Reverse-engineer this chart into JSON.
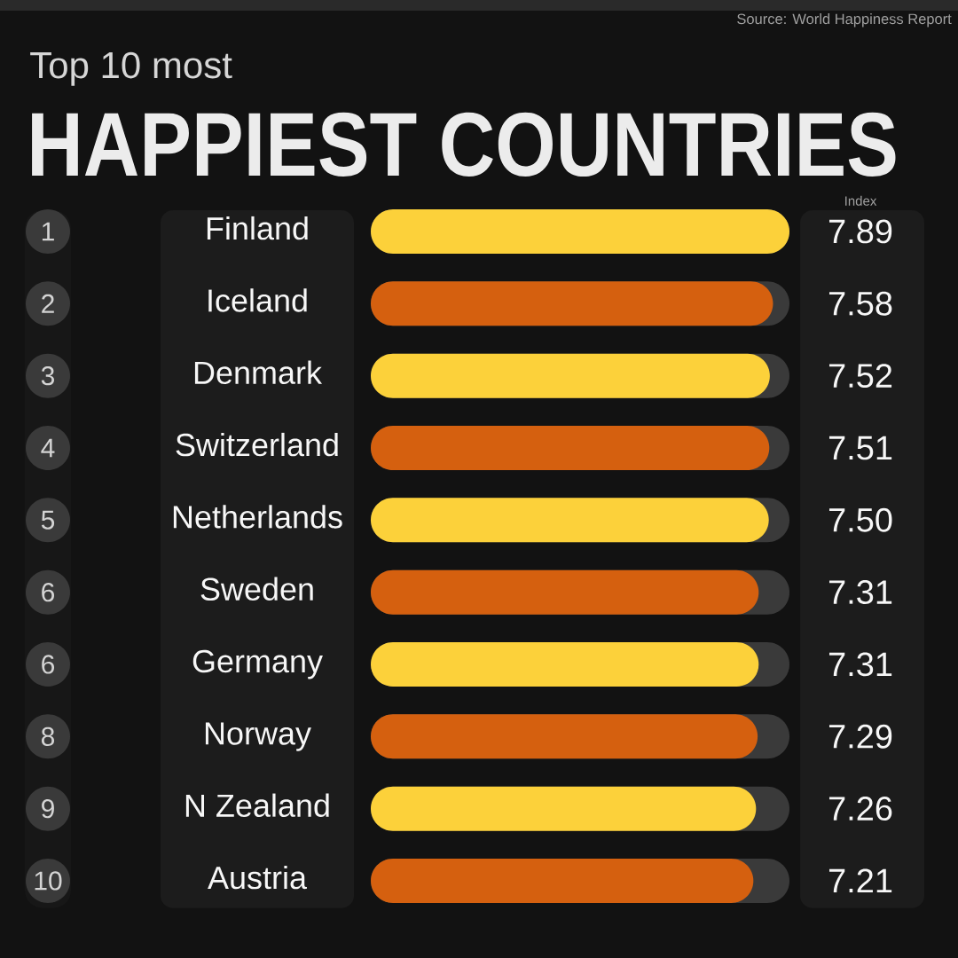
{
  "chart_data": {
    "type": "bar",
    "orientation": "horizontal",
    "subtitle": "Top 10 most",
    "title": "HAPPIEST COUNTRIES",
    "xlabel": "Index",
    "categories": [
      "Finland",
      "Iceland",
      "Denmark",
      "Switzerland",
      "Netherlands",
      "Sweden",
      "Germany",
      "Norway",
      "N Zealand",
      "Austria"
    ],
    "values": [
      7.89,
      7.58,
      7.52,
      7.51,
      7.5,
      7.31,
      7.31,
      7.29,
      7.26,
      7.21
    ],
    "value_labels": [
      "7.89",
      "7.58",
      "7.52",
      "7.51",
      "7.50",
      "7.31",
      "7.31",
      "7.29",
      "7.26",
      "7.21"
    ],
    "colors": [
      "#fcd13a",
      "#d5600f",
      "#fcd13a",
      "#d5600f",
      "#fcd13a",
      "#d5600f",
      "#fcd13a",
      "#d5600f",
      "#fcd13a",
      "#d5600f"
    ],
    "annotations": [
      "Source: World Happiness Report",
      "1",
      "2",
      "3",
      "4",
      "5",
      "6",
      "6",
      "8",
      "9",
      "10"
    ]
  }
}
